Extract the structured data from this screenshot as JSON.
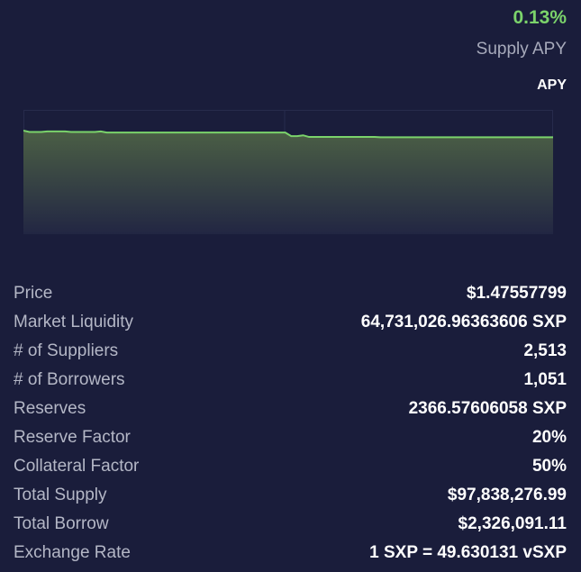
{
  "header": {
    "apy_value": "0.13%",
    "apy_caption": "Supply APY",
    "tab_label": "APY"
  },
  "colors": {
    "background": "#1a1d3b",
    "accent_green": "#7bd36b",
    "label_gray": "#b4b7c6"
  },
  "chart_data": {
    "type": "area",
    "title": "",
    "xlabel": "",
    "ylabel": "",
    "grid": true,
    "series": [
      {
        "values": [
          0.1325,
          0.132,
          0.132,
          0.132,
          0.1322,
          0.1322,
          0.1322,
          0.1322,
          0.132,
          0.132,
          0.132,
          0.132,
          0.132,
          0.1322,
          0.1318,
          0.1318,
          0.1318,
          0.1318,
          0.1318,
          0.1318,
          0.1318,
          0.1318,
          0.1318,
          0.1318,
          0.1318,
          0.1318,
          0.1318,
          0.1318,
          0.1318,
          0.1318,
          0.1318,
          0.1318,
          0.1318,
          0.1318,
          0.1318,
          0.1318,
          0.1318,
          0.1318,
          0.1318,
          0.1318,
          0.1318,
          0.1318,
          0.1318,
          0.1318,
          0.1318,
          0.1305,
          0.1305,
          0.1308,
          0.1302,
          0.1302,
          0.1302,
          0.1302,
          0.1302,
          0.1302,
          0.1302,
          0.1302,
          0.1302,
          0.1302,
          0.1302,
          0.1302,
          0.1301,
          0.1301,
          0.1301,
          0.1301,
          0.1301,
          0.1301,
          0.1301,
          0.1301,
          0.1301,
          0.1301,
          0.1301,
          0.1301,
          0.1301,
          0.1301,
          0.1301,
          0.1301,
          0.1301,
          0.1301,
          0.1301,
          0.1301,
          0.1301,
          0.1301,
          0.1301,
          0.1301,
          0.1301,
          0.1301,
          0.1301,
          0.1301,
          0.1301,
          0.1301
        ]
      }
    ],
    "ylim": [
      0.095,
      0.14
    ]
  },
  "stats": [
    {
      "label": "Price",
      "value": "$1.47557799"
    },
    {
      "label": "Market Liquidity",
      "value": "64,731,026.96363606 SXP"
    },
    {
      "label": "# of Suppliers",
      "value": "2,513"
    },
    {
      "label": "# of Borrowers",
      "value": "1,051"
    },
    {
      "label": "Reserves",
      "value": "2366.57606058 SXP"
    },
    {
      "label": "Reserve Factor",
      "value": "20%"
    },
    {
      "label": "Collateral Factor",
      "value": "50%"
    },
    {
      "label": "Total Supply",
      "value": "$97,838,276.99"
    },
    {
      "label": "Total Borrow",
      "value": "$2,326,091.11"
    },
    {
      "label": "Exchange Rate",
      "value": "1 SXP = 49.630131 vSXP"
    }
  ]
}
